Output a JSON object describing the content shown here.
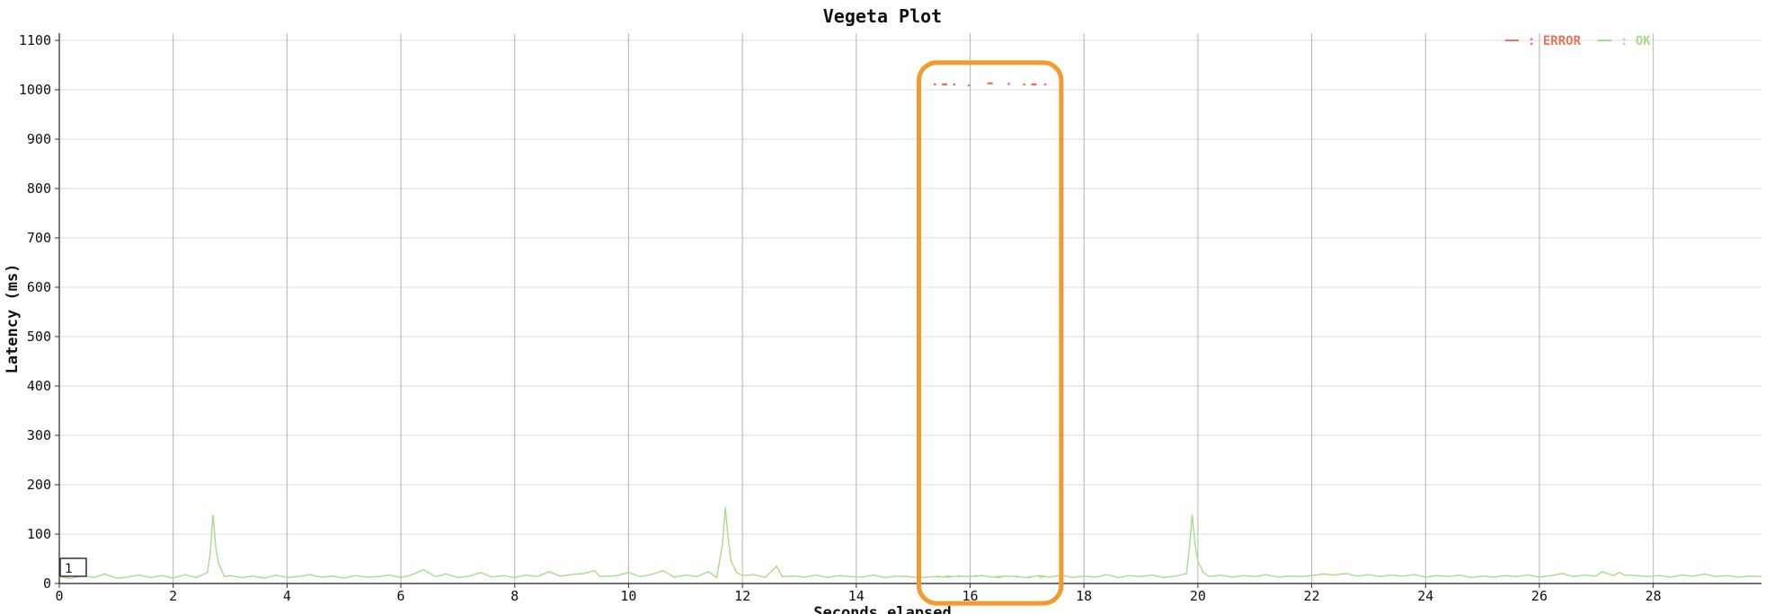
{
  "chart_data": {
    "type": "line",
    "title": "Vegeta Plot",
    "xlabel": "Seconds elapsed",
    "ylabel": "Latency (ms)",
    "xlim": [
      0,
      29.9
    ],
    "ylim": [
      0,
      1100
    ],
    "x_ticks": [
      0,
      2,
      4,
      6,
      8,
      10,
      12,
      14,
      16,
      18,
      20,
      22,
      24,
      26,
      28
    ],
    "y_ticks": [
      0,
      100,
      200,
      300,
      400,
      500,
      600,
      700,
      800,
      900,
      1000,
      1100
    ],
    "grid": true,
    "legend_placement": "top-right",
    "colors": {
      "error": "#e8735f",
      "ok": "#a8dc8c",
      "highlight": "#f39a2e"
    },
    "legend": [
      {
        "name": "ERROR",
        "label": ": ERROR",
        "color": "#e8735f"
      },
      {
        "name": "OK",
        "label": ": OK",
        "color": "#a8dc8c"
      }
    ],
    "badge_label": "1",
    "highlight_range": {
      "x": [
        15.1,
        17.6
      ],
      "y": [
        -40,
        1055
      ]
    },
    "series": [
      {
        "name": "OK",
        "color": "#a8dc8c",
        "style": "line",
        "points": [
          [
            0.0,
            14
          ],
          [
            0.2,
            10
          ],
          [
            0.4,
            16
          ],
          [
            0.6,
            12
          ],
          [
            0.8,
            19
          ],
          [
            1.0,
            11
          ],
          [
            1.2,
            13
          ],
          [
            1.4,
            17
          ],
          [
            1.6,
            12
          ],
          [
            1.8,
            16
          ],
          [
            2.0,
            11
          ],
          [
            2.2,
            18
          ],
          [
            2.4,
            12
          ],
          [
            2.6,
            22
          ],
          [
            2.65,
            60
          ],
          [
            2.7,
            140
          ],
          [
            2.75,
            70
          ],
          [
            2.8,
            40
          ],
          [
            2.9,
            14
          ],
          [
            3.0,
            16
          ],
          [
            3.2,
            12
          ],
          [
            3.4,
            15
          ],
          [
            3.6,
            11
          ],
          [
            3.8,
            17
          ],
          [
            4.0,
            12
          ],
          [
            4.2,
            14
          ],
          [
            4.4,
            18
          ],
          [
            4.6,
            13
          ],
          [
            4.8,
            15
          ],
          [
            5.0,
            11
          ],
          [
            5.2,
            16
          ],
          [
            5.4,
            13
          ],
          [
            5.6,
            14
          ],
          [
            5.8,
            17
          ],
          [
            6.0,
            12
          ],
          [
            6.2,
            18
          ],
          [
            6.4,
            28
          ],
          [
            6.6,
            14
          ],
          [
            6.8,
            19
          ],
          [
            7.0,
            12
          ],
          [
            7.2,
            15
          ],
          [
            7.4,
            22
          ],
          [
            7.6,
            13
          ],
          [
            7.8,
            16
          ],
          [
            8.0,
            12
          ],
          [
            8.2,
            17
          ],
          [
            8.4,
            14
          ],
          [
            8.6,
            24
          ],
          [
            8.8,
            15
          ],
          [
            9.0,
            18
          ],
          [
            9.2,
            20
          ],
          [
            9.4,
            26
          ],
          [
            9.5,
            14
          ],
          [
            9.8,
            16
          ],
          [
            10.0,
            22
          ],
          [
            10.2,
            14
          ],
          [
            10.4,
            18
          ],
          [
            10.6,
            26
          ],
          [
            10.8,
            13
          ],
          [
            11.0,
            17
          ],
          [
            11.2,
            14
          ],
          [
            11.4,
            24
          ],
          [
            11.55,
            12
          ],
          [
            11.65,
            80
          ],
          [
            11.7,
            155
          ],
          [
            11.75,
            90
          ],
          [
            11.8,
            45
          ],
          [
            11.9,
            22
          ],
          [
            12.0,
            16
          ],
          [
            12.2,
            18
          ],
          [
            12.4,
            12
          ],
          [
            12.6,
            35
          ],
          [
            12.7,
            14
          ],
          [
            12.9,
            15
          ],
          [
            13.1,
            13
          ],
          [
            13.3,
            17
          ],
          [
            13.5,
            12
          ],
          [
            13.7,
            16
          ],
          [
            13.9,
            14
          ],
          [
            14.1,
            13
          ],
          [
            14.3,
            17
          ],
          [
            14.5,
            12
          ],
          [
            14.7,
            15
          ],
          [
            14.9,
            14
          ],
          [
            15.1,
            12
          ],
          [
            15.4,
            14
          ],
          [
            15.6,
            13
          ],
          [
            15.8,
            15
          ],
          [
            16.0,
            14
          ],
          [
            16.2,
            16
          ],
          [
            16.4,
            13
          ],
          [
            16.6,
            15
          ],
          [
            16.8,
            14
          ],
          [
            17.0,
            12
          ],
          [
            17.2,
            16
          ],
          [
            17.4,
            13
          ],
          [
            17.6,
            17
          ],
          [
            17.8,
            12
          ],
          [
            18.0,
            15
          ],
          [
            18.2,
            13
          ],
          [
            18.4,
            18
          ],
          [
            18.6,
            12
          ],
          [
            18.8,
            16
          ],
          [
            19.0,
            14
          ],
          [
            19.2,
            17
          ],
          [
            19.4,
            12
          ],
          [
            19.6,
            15
          ],
          [
            19.8,
            20
          ],
          [
            19.85,
            70
          ],
          [
            19.9,
            140
          ],
          [
            19.95,
            80
          ],
          [
            20.0,
            45
          ],
          [
            20.1,
            22
          ],
          [
            20.2,
            14
          ],
          [
            20.4,
            17
          ],
          [
            20.6,
            13
          ],
          [
            20.8,
            16
          ],
          [
            21.0,
            14
          ],
          [
            21.2,
            18
          ],
          [
            21.4,
            13
          ],
          [
            21.6,
            15
          ],
          [
            21.8,
            14
          ],
          [
            22.0,
            16
          ],
          [
            22.2,
            19
          ],
          [
            22.4,
            17
          ],
          [
            22.6,
            20
          ],
          [
            22.8,
            15
          ],
          [
            23.0,
            18
          ],
          [
            23.2,
            14
          ],
          [
            23.4,
            17
          ],
          [
            23.6,
            15
          ],
          [
            23.8,
            18
          ],
          [
            24.0,
            13
          ],
          [
            24.2,
            16
          ],
          [
            24.4,
            14
          ],
          [
            24.6,
            17
          ],
          [
            24.8,
            12
          ],
          [
            25.0,
            15
          ],
          [
            25.2,
            13
          ],
          [
            25.4,
            16
          ],
          [
            25.6,
            14
          ],
          [
            25.8,
            17
          ],
          [
            26.0,
            13
          ],
          [
            26.2,
            16
          ],
          [
            26.4,
            20
          ],
          [
            26.6,
            14
          ],
          [
            26.8,
            17
          ],
          [
            27.0,
            15
          ],
          [
            27.1,
            24
          ],
          [
            27.3,
            16
          ],
          [
            27.4,
            22
          ],
          [
            27.5,
            17
          ],
          [
            27.7,
            16
          ],
          [
            27.9,
            14
          ],
          [
            28.1,
            16
          ],
          [
            28.3,
            13
          ],
          [
            28.5,
            17
          ],
          [
            28.7,
            15
          ],
          [
            28.9,
            19
          ],
          [
            29.1,
            14
          ],
          [
            29.3,
            16
          ],
          [
            29.5,
            13
          ],
          [
            29.7,
            15
          ],
          [
            29.9,
            14
          ]
        ]
      },
      {
        "name": "ERROR",
        "color": "#e8735f",
        "style": "markers",
        "points": [
          [
            15.38,
            1011
          ],
          [
            15.55,
            1011
          ],
          [
            15.72,
            1011
          ],
          [
            15.98,
            1009
          ],
          [
            16.35,
            1013
          ],
          [
            16.68,
            1012
          ],
          [
            16.95,
            1011
          ],
          [
            17.12,
            1011
          ],
          [
            17.32,
            1011
          ]
        ]
      },
      {
        "name": "OK",
        "color": "#a8dc8c",
        "style": "markers",
        "points": [
          [
            15.45,
            14
          ],
          [
            15.62,
            14
          ],
          [
            15.8,
            14
          ],
          [
            16.1,
            15
          ],
          [
            16.5,
            13
          ],
          [
            16.82,
            14
          ],
          [
            17.05,
            13
          ],
          [
            17.25,
            14
          ]
        ]
      }
    ]
  }
}
